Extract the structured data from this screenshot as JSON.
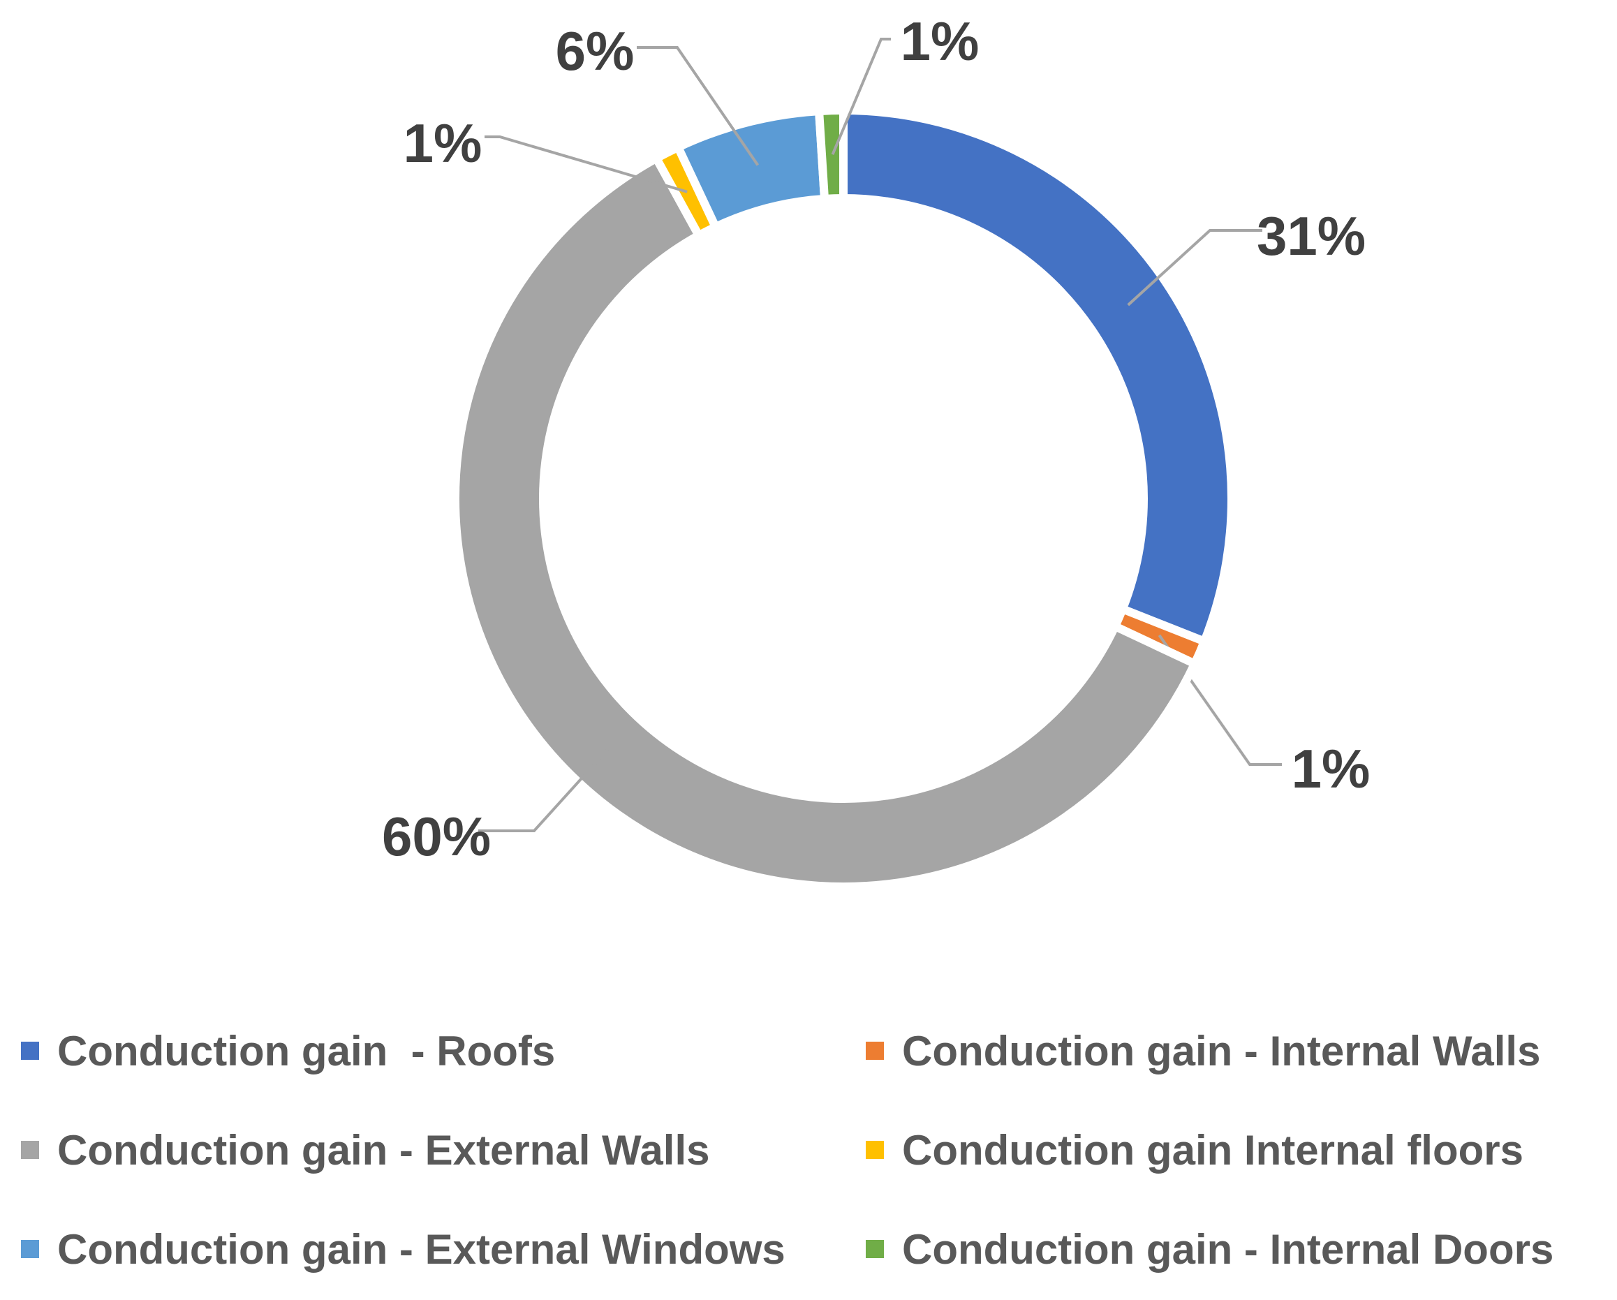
{
  "chart_data": {
    "type": "pie",
    "variant": "donut",
    "title": "",
    "series": [
      {
        "name": "Conduction gain  - Roofs",
        "value": 31,
        "label": "31%",
        "color": "#4472C4"
      },
      {
        "name": "Conduction gain - Internal Walls",
        "value": 1,
        "label": "1%",
        "color": "#ED7D31"
      },
      {
        "name": "Conduction gain - External Walls",
        "value": 60,
        "label": "60%",
        "color": "#A5A5A5"
      },
      {
        "name": "Conduction gain Internal floors",
        "value": 1,
        "label": "1%",
        "color": "#FFC000"
      },
      {
        "name": "Conduction gain - External Windows",
        "value": 6,
        "label": "6%",
        "color": "#5B9BD5"
      },
      {
        "name": "Conduction gain - Internal Doors",
        "value": 1,
        "label": "1%",
        "color": "#70AD47"
      }
    ],
    "legend_position": "bottom",
    "leader_line_color": "#A5A5A5"
  }
}
